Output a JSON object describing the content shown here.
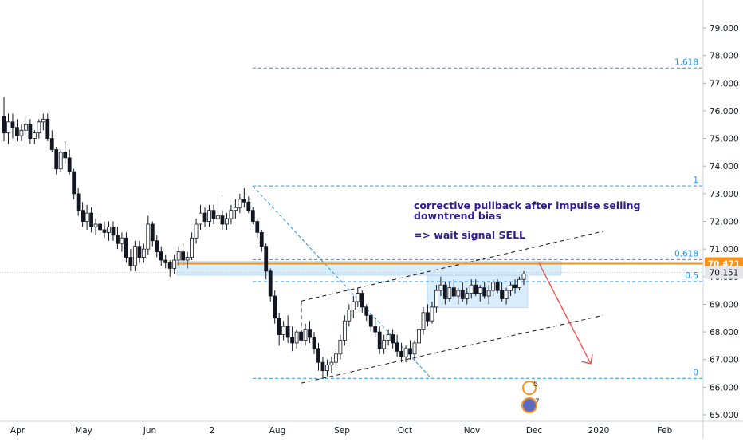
{
  "chart_data": {
    "type": "candlestick",
    "title": "",
    "xlabel": "",
    "ylabel": "",
    "ylim": [
      64.9,
      80.0
    ],
    "grid": false,
    "y_ticks": [
      "65.000",
      "66.000",
      "67.000",
      "68.000",
      "69.000",
      "70.000",
      "71.000",
      "72.000",
      "73.000",
      "74.000",
      "75.000",
      "76.000",
      "77.000",
      "78.000",
      "79.000"
    ],
    "x_ticks": [
      "Apr",
      "May",
      "Jun",
      "2",
      "Aug",
      "Sep",
      "Oct",
      "Nov",
      "Dec",
      "2020",
      "Feb"
    ],
    "series": [
      {
        "values": [
          [
            75.8,
            76.5,
            74.9,
            75.2
          ],
          [
            75.2,
            75.9,
            74.8,
            75.6
          ],
          [
            75.6,
            75.9,
            75.0,
            75.4
          ],
          [
            75.4,
            75.7,
            74.9,
            75.1
          ],
          [
            75.1,
            75.5,
            74.9,
            75.3
          ],
          [
            75.3,
            75.8,
            75.1,
            75.5
          ],
          [
            75.5,
            75.7,
            74.8,
            75.0
          ],
          [
            75.0,
            75.3,
            74.8,
            75.2
          ],
          [
            75.2,
            75.7,
            75.0,
            75.6
          ],
          [
            75.6,
            75.9,
            75.3,
            75.7
          ],
          [
            75.7,
            75.9,
            74.9,
            75.0
          ],
          [
            75.0,
            75.3,
            74.5,
            74.6
          ],
          [
            74.6,
            74.7,
            73.7,
            73.9
          ],
          [
            73.9,
            74.6,
            73.8,
            74.5
          ],
          [
            74.5,
            74.9,
            74.1,
            74.3
          ],
          [
            74.3,
            74.6,
            73.7,
            73.8
          ],
          [
            73.8,
            73.9,
            72.8,
            73.0
          ],
          [
            73.0,
            73.2,
            72.2,
            72.4
          ],
          [
            72.4,
            72.7,
            71.8,
            72.0
          ],
          [
            72.0,
            72.6,
            71.7,
            72.3
          ],
          [
            72.3,
            72.5,
            71.6,
            71.8
          ],
          [
            71.8,
            72.1,
            71.5,
            71.9
          ],
          [
            71.9,
            72.2,
            71.5,
            71.7
          ],
          [
            71.7,
            72.0,
            71.4,
            71.6
          ],
          [
            71.6,
            72.0,
            71.3,
            71.8
          ],
          [
            71.8,
            72.0,
            71.3,
            71.5
          ],
          [
            71.5,
            71.8,
            71.0,
            71.2
          ],
          [
            71.2,
            71.6,
            70.9,
            71.4
          ],
          [
            71.4,
            71.6,
            70.5,
            70.7
          ],
          [
            70.7,
            71.0,
            70.2,
            70.4
          ],
          [
            70.4,
            71.3,
            70.2,
            71.1
          ],
          [
            71.1,
            71.3,
            70.5,
            70.7
          ],
          [
            70.7,
            71.2,
            70.5,
            71.0
          ],
          [
            71.0,
            72.2,
            70.8,
            71.9
          ],
          [
            71.9,
            72.0,
            71.1,
            71.3
          ],
          [
            71.3,
            71.5,
            70.7,
            70.9
          ],
          [
            70.9,
            71.1,
            70.4,
            70.6
          ],
          [
            70.6,
            70.8,
            70.3,
            70.5
          ],
          [
            70.5,
            70.6,
            70.0,
            70.3
          ],
          [
            70.3,
            70.8,
            70.1,
            70.6
          ],
          [
            70.6,
            71.1,
            70.4,
            70.9
          ],
          [
            70.9,
            71.2,
            70.4,
            70.6
          ],
          [
            70.6,
            70.9,
            70.3,
            70.7
          ],
          [
            70.7,
            71.6,
            70.6,
            71.4
          ],
          [
            71.4,
            72.1,
            71.2,
            71.9
          ],
          [
            71.9,
            72.6,
            71.7,
            72.3
          ],
          [
            72.3,
            72.5,
            71.8,
            72.0
          ],
          [
            72.0,
            72.6,
            71.8,
            72.4
          ],
          [
            72.4,
            72.6,
            71.9,
            72.1
          ],
          [
            72.1,
            72.9,
            71.9,
            72.2
          ],
          [
            72.2,
            72.4,
            71.7,
            71.9
          ],
          [
            71.9,
            72.3,
            71.7,
            72.1
          ],
          [
            72.1,
            72.6,
            71.9,
            72.4
          ],
          [
            72.4,
            72.8,
            72.1,
            72.5
          ],
          [
            72.5,
            73.0,
            72.3,
            72.8
          ],
          [
            72.8,
            73.2,
            72.5,
            72.7
          ],
          [
            72.7,
            72.9,
            72.3,
            72.4
          ],
          [
            72.4,
            72.5,
            71.9,
            72.0
          ],
          [
            72.0,
            72.1,
            71.4,
            71.6
          ],
          [
            71.6,
            71.7,
            70.9,
            71.1
          ],
          [
            71.1,
            71.2,
            69.9,
            70.2
          ],
          [
            70.2,
            70.3,
            69.1,
            69.3
          ],
          [
            69.3,
            69.5,
            68.3,
            68.5
          ],
          [
            68.5,
            68.7,
            67.5,
            67.9
          ],
          [
            67.9,
            68.4,
            67.7,
            68.2
          ],
          [
            68.2,
            68.6,
            67.6,
            67.8
          ],
          [
            67.8,
            68.2,
            67.3,
            67.6
          ],
          [
            67.6,
            68.1,
            67.4,
            68.0
          ],
          [
            68.0,
            68.3,
            67.5,
            67.7
          ],
          [
            67.7,
            68.3,
            67.5,
            68.1
          ],
          [
            68.1,
            68.4,
            67.6,
            67.8
          ],
          [
            67.8,
            68.0,
            67.2,
            67.4
          ],
          [
            67.4,
            67.6,
            66.6,
            66.9
          ],
          [
            66.9,
            67.1,
            66.3,
            66.6
          ],
          [
            66.6,
            67.0,
            66.4,
            66.8
          ],
          [
            66.8,
            67.1,
            66.5,
            66.9
          ],
          [
            66.9,
            67.4,
            66.7,
            67.2
          ],
          [
            67.2,
            67.9,
            67.0,
            67.7
          ],
          [
            67.7,
            68.6,
            67.5,
            68.4
          ],
          [
            68.4,
            69.0,
            68.2,
            68.8
          ],
          [
            68.8,
            69.3,
            68.5,
            69.1
          ],
          [
            69.1,
            69.6,
            68.9,
            69.4
          ],
          [
            69.4,
            69.5,
            68.7,
            68.9
          ],
          [
            68.9,
            69.0,
            68.4,
            68.6
          ],
          [
            68.6,
            68.7,
            68.0,
            68.2
          ],
          [
            68.2,
            68.5,
            67.8,
            68.0
          ],
          [
            68.0,
            68.2,
            67.2,
            67.4
          ],
          [
            67.4,
            67.9,
            67.2,
            67.7
          ],
          [
            67.7,
            68.1,
            67.5,
            67.9
          ],
          [
            67.9,
            68.1,
            67.4,
            67.6
          ],
          [
            67.6,
            67.9,
            67.1,
            67.3
          ],
          [
            67.3,
            67.6,
            66.9,
            67.1
          ],
          [
            67.1,
            67.5,
            66.9,
            67.4
          ],
          [
            67.4,
            67.7,
            67.0,
            67.2
          ],
          [
            67.2,
            67.7,
            67.0,
            67.6
          ],
          [
            67.6,
            68.3,
            67.5,
            68.1
          ],
          [
            68.1,
            68.9,
            67.9,
            68.7
          ],
          [
            68.7,
            69.0,
            68.2,
            68.4
          ],
          [
            68.4,
            69.1,
            68.3,
            68.9
          ],
          [
            68.9,
            69.7,
            68.7,
            69.5
          ],
          [
            69.5,
            70.0,
            69.3,
            69.7
          ],
          [
            69.7,
            69.8,
            69.0,
            69.2
          ],
          [
            69.2,
            69.8,
            69.1,
            69.6
          ],
          [
            69.6,
            69.9,
            69.2,
            69.3
          ],
          [
            69.3,
            69.6,
            69.0,
            69.5
          ],
          [
            69.5,
            69.8,
            69.1,
            69.2
          ],
          [
            69.2,
            69.6,
            69.0,
            69.4
          ],
          [
            69.4,
            69.9,
            69.2,
            69.7
          ],
          [
            69.7,
            69.9,
            69.3,
            69.4
          ],
          [
            69.4,
            69.7,
            69.1,
            69.6
          ],
          [
            69.6,
            69.8,
            69.2,
            69.3
          ],
          [
            69.3,
            69.7,
            69.0,
            69.5
          ],
          [
            69.5,
            69.9,
            69.3,
            69.8
          ],
          [
            69.8,
            69.9,
            69.4,
            69.5
          ],
          [
            69.5,
            69.8,
            69.1,
            69.2
          ],
          [
            69.2,
            69.6,
            69.0,
            69.5
          ],
          [
            69.5,
            69.8,
            69.3,
            69.7
          ],
          [
            69.7,
            69.9,
            69.4,
            69.6
          ],
          [
            69.6,
            70.0,
            69.5,
            69.9
          ],
          [
            69.9,
            70.2,
            69.7,
            70.1
          ]
        ]
      }
    ],
    "horizontal_levels": [
      {
        "label": "1.618",
        "value": 77.55
      },
      {
        "label": "1",
        "value": 73.28
      },
      {
        "label": "0.618",
        "value": 70.62
      },
      {
        "label": "0.5",
        "value": 69.82
      },
      {
        "label": "0",
        "value": 66.32
      }
    ],
    "resistance_line": {
      "value": 70.471
    },
    "price_badges": [
      {
        "text": "70.471",
        "value": 70.471,
        "color": "#f7931a"
      },
      {
        "text": "70.151",
        "value": 70.151,
        "color": "#e6e6ea"
      }
    ],
    "annotations": [
      "corrective pullback after impulse selling",
      "downtrend bias",
      "=> wait signal SELL"
    ],
    "event_markers": [
      "5",
      "7"
    ]
  },
  "colors": {
    "up": "#ffffff",
    "down": "#131722",
    "fib": "#2196f3",
    "resistance": "#f7931a",
    "zone": "#bbdefb",
    "channel": "#131722",
    "arrow": "#ef5350",
    "annotation": "#311b92",
    "axis_text": "#131722"
  }
}
